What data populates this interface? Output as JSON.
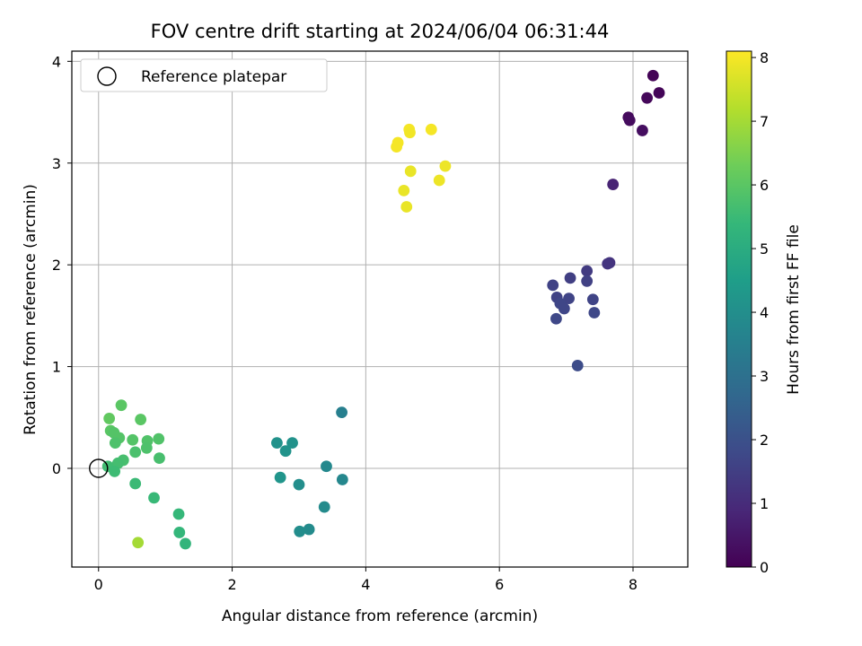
{
  "chart_data": {
    "type": "scatter",
    "title": "FOV centre drift starting at 2024/06/04 06:31:44",
    "xlabel": "Angular distance from reference (arcmin)",
    "ylabel": "Rotation from reference (arcmin)",
    "xlim": [
      -0.4,
      8.82
    ],
    "ylim": [
      -0.97,
      4.1
    ],
    "xticks": [
      0,
      2,
      4,
      6,
      8
    ],
    "yticks": [
      0,
      1,
      2,
      3,
      4
    ],
    "grid": true,
    "legend": {
      "placement": "top-left",
      "entries": [
        "Reference platepar"
      ]
    },
    "reference_point": {
      "x": 0,
      "y": 0,
      "label": "Reference platepar"
    },
    "colorbar": {
      "label": "Hours from first FF file",
      "range": [
        0,
        8.1
      ],
      "ticks": [
        0,
        1,
        2,
        3,
        4,
        5,
        6,
        7,
        8
      ],
      "colormap": "viridis"
    },
    "points": [
      {
        "x": 8.3,
        "y": 3.86,
        "c": 0.05
      },
      {
        "x": 8.39,
        "y": 3.69,
        "c": 0.1
      },
      {
        "x": 8.21,
        "y": 3.64,
        "c": 0.15
      },
      {
        "x": 7.93,
        "y": 3.45,
        "c": 0.2
      },
      {
        "x": 7.95,
        "y": 3.42,
        "c": 0.25
      },
      {
        "x": 8.14,
        "y": 3.32,
        "c": 0.3
      },
      {
        "x": 7.7,
        "y": 2.79,
        "c": 0.8
      },
      {
        "x": 7.65,
        "y": 2.02,
        "c": 1.2
      },
      {
        "x": 7.62,
        "y": 2.01,
        "c": 1.25
      },
      {
        "x": 7.31,
        "y": 1.94,
        "c": 1.4
      },
      {
        "x": 7.06,
        "y": 1.87,
        "c": 1.5
      },
      {
        "x": 7.31,
        "y": 1.84,
        "c": 1.55
      },
      {
        "x": 6.8,
        "y": 1.8,
        "c": 1.6
      },
      {
        "x": 6.86,
        "y": 1.68,
        "c": 1.6
      },
      {
        "x": 7.04,
        "y": 1.67,
        "c": 1.65
      },
      {
        "x": 7.4,
        "y": 1.66,
        "c": 1.65
      },
      {
        "x": 6.91,
        "y": 1.62,
        "c": 1.7
      },
      {
        "x": 6.97,
        "y": 1.57,
        "c": 1.7
      },
      {
        "x": 7.42,
        "y": 1.53,
        "c": 1.75
      },
      {
        "x": 6.85,
        "y": 1.47,
        "c": 1.75
      },
      {
        "x": 7.17,
        "y": 1.01,
        "c": 1.85
      },
      {
        "x": 3.64,
        "y": 0.55,
        "c": 3.5
      },
      {
        "x": 2.67,
        "y": 0.25,
        "c": 4.1
      },
      {
        "x": 2.9,
        "y": 0.25,
        "c": 4.1
      },
      {
        "x": 2.8,
        "y": 0.17,
        "c": 4.15
      },
      {
        "x": 3.41,
        "y": 0.02,
        "c": 3.8
      },
      {
        "x": 2.72,
        "y": -0.09,
        "c": 4.2
      },
      {
        "x": 3.65,
        "y": -0.11,
        "c": 3.75
      },
      {
        "x": 3.0,
        "y": -0.16,
        "c": 4.0
      },
      {
        "x": 3.38,
        "y": -0.38,
        "c": 3.9
      },
      {
        "x": 3.15,
        "y": -0.6,
        "c": 3.9
      },
      {
        "x": 3.01,
        "y": -0.62,
        "c": 3.95
      },
      {
        "x": 0.34,
        "y": 0.62,
        "c": 6.0
      },
      {
        "x": 0.16,
        "y": 0.49,
        "c": 6.1
      },
      {
        "x": 0.63,
        "y": 0.48,
        "c": 6.0
      },
      {
        "x": 0.18,
        "y": 0.37,
        "c": 6.0
      },
      {
        "x": 0.23,
        "y": 0.35,
        "c": 5.9
      },
      {
        "x": 0.31,
        "y": 0.3,
        "c": 5.9
      },
      {
        "x": 0.51,
        "y": 0.28,
        "c": 5.9
      },
      {
        "x": 0.9,
        "y": 0.29,
        "c": 5.85
      },
      {
        "x": 0.73,
        "y": 0.27,
        "c": 5.85
      },
      {
        "x": 0.25,
        "y": 0.25,
        "c": 5.8
      },
      {
        "x": 0.72,
        "y": 0.2,
        "c": 5.8
      },
      {
        "x": 0.55,
        "y": 0.16,
        "c": 5.75
      },
      {
        "x": 0.91,
        "y": 0.1,
        "c": 5.7
      },
      {
        "x": 0.37,
        "y": 0.08,
        "c": 5.7
      },
      {
        "x": 0.29,
        "y": 0.05,
        "c": 5.65
      },
      {
        "x": 0.14,
        "y": 0.02,
        "c": 5.6
      },
      {
        "x": 0.24,
        "y": -0.03,
        "c": 5.55
      },
      {
        "x": 0.55,
        "y": -0.15,
        "c": 5.5
      },
      {
        "x": 0.83,
        "y": -0.29,
        "c": 5.45
      },
      {
        "x": 1.2,
        "y": -0.45,
        "c": 5.4
      },
      {
        "x": 1.21,
        "y": -0.63,
        "c": 5.35
      },
      {
        "x": 1.3,
        "y": -0.74,
        "c": 5.3
      },
      {
        "x": 0.59,
        "y": -0.73,
        "c": 7.0
      },
      {
        "x": 4.65,
        "y": 3.33,
        "c": 8.0
      },
      {
        "x": 4.98,
        "y": 3.33,
        "c": 8.0
      },
      {
        "x": 4.66,
        "y": 3.3,
        "c": 7.95
      },
      {
        "x": 4.48,
        "y": 3.2,
        "c": 8.0
      },
      {
        "x": 4.46,
        "y": 3.16,
        "c": 8.0
      },
      {
        "x": 5.19,
        "y": 2.97,
        "c": 7.9
      },
      {
        "x": 4.67,
        "y": 2.92,
        "c": 7.85
      },
      {
        "x": 5.1,
        "y": 2.83,
        "c": 7.9
      },
      {
        "x": 4.57,
        "y": 2.73,
        "c": 7.85
      },
      {
        "x": 4.61,
        "y": 2.57,
        "c": 7.85
      }
    ]
  }
}
